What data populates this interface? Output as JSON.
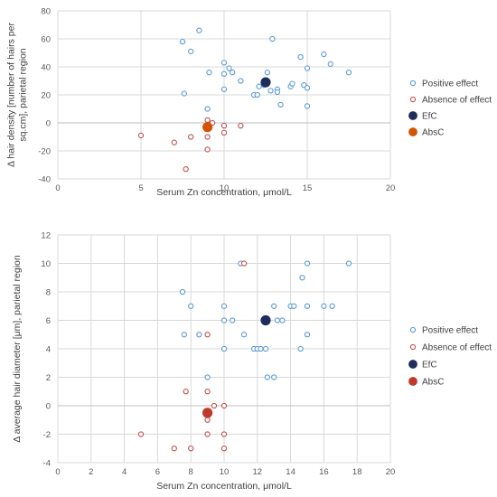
{
  "chart_data": [
    {
      "type": "scatter",
      "xlabel": "Serum Zn concentration, μmol/L",
      "ylabel": "Δ hair density [number of hairs per sq.cm], parietal region",
      "ylabel_lines": [
        "Δ hair density [number of hairs per",
        "sq.cm], parietal region"
      ],
      "xlim": [
        0,
        20
      ],
      "ylim": [
        -40,
        80
      ],
      "xticks": [
        0,
        5,
        10,
        15,
        20
      ],
      "yticks": [
        -40,
        -20,
        0,
        20,
        40,
        60,
        80
      ],
      "grid": true,
      "legend_position": "right",
      "series": [
        {
          "name": "Positive effect",
          "marker": "open-circle",
          "color": "#5B9BD5",
          "points": [
            [
              8.5,
              66
            ],
            [
              7.5,
              58
            ],
            [
              8,
              51
            ],
            [
              12.9,
              60
            ],
            [
              7.6,
              21
            ],
            [
              9.1,
              36
            ],
            [
              10,
              43
            ],
            [
              10.3,
              39
            ],
            [
              10.5,
              36
            ],
            [
              10,
              35
            ],
            [
              11,
              30
            ],
            [
              12.6,
              36
            ],
            [
              12.4,
              27
            ],
            [
              12.8,
              23
            ],
            [
              12.1,
              26
            ],
            [
              13.2,
              24
            ],
            [
              14,
              26
            ],
            [
              14.1,
              28
            ],
            [
              14.6,
              47
            ],
            [
              14.8,
              27
            ],
            [
              15,
              39
            ],
            [
              15,
              25
            ],
            [
              16,
              49
            ],
            [
              16.4,
              42
            ],
            [
              17.5,
              36
            ],
            [
              11.8,
              20
            ],
            [
              12,
              20
            ],
            [
              13.4,
              13
            ],
            [
              15,
              12
            ],
            [
              10,
              24
            ],
            [
              9,
              10
            ],
            [
              12.5,
              29
            ],
            [
              13.2,
              22
            ]
          ]
        },
        {
          "name": "Absence of effect",
          "marker": "open-circle",
          "color": "#C0504D",
          "points": [
            [
              5,
              -9
            ],
            [
              7,
              -14
            ],
            [
              7.7,
              -33
            ],
            [
              8,
              -10
            ],
            [
              9,
              -19
            ],
            [
              9,
              -10
            ],
            [
              9,
              2
            ],
            [
              9.3,
              0
            ],
            [
              10,
              -2
            ],
            [
              10,
              -7
            ],
            [
              11,
              -2
            ]
          ]
        },
        {
          "name": "EfC",
          "marker": "filled-circle",
          "color": "#1F2D5C",
          "points": [
            [
              12.5,
              29
            ]
          ]
        },
        {
          "name": "AbsC",
          "marker": "filled-circle",
          "color": "#D35400",
          "points": [
            [
              9,
              -3
            ]
          ]
        }
      ]
    },
    {
      "type": "scatter",
      "xlabel": "Serum Zn concentration, μmol/L",
      "ylabel": "Δ average hair diameter [μm], parietal region",
      "ylabel_lines": [
        "Δ average hair diameter [μm], parietal region"
      ],
      "xlim": [
        0,
        20
      ],
      "ylim": [
        -4,
        12
      ],
      "xticks": [
        0,
        2,
        4,
        6,
        8,
        10,
        12,
        14,
        16,
        18,
        20
      ],
      "yticks": [
        -4,
        -2,
        0,
        2,
        4,
        6,
        8,
        10,
        12
      ],
      "grid": true,
      "legend_position": "right",
      "series": [
        {
          "name": "Positive effect",
          "marker": "open-circle",
          "color": "#5B9BD5",
          "points": [
            [
              11,
              10
            ],
            [
              15,
              10
            ],
            [
              17.5,
              10
            ],
            [
              14.7,
              9
            ],
            [
              7.5,
              8
            ],
            [
              8,
              7
            ],
            [
              10,
              7
            ],
            [
              13,
              7
            ],
            [
              14,
              7
            ],
            [
              14.2,
              7
            ],
            [
              15,
              7
            ],
            [
              16,
              7
            ],
            [
              16.5,
              7
            ],
            [
              10,
              6
            ],
            [
              10.5,
              6
            ],
            [
              13.2,
              6
            ],
            [
              13.5,
              6
            ],
            [
              7.6,
              5
            ],
            [
              8.5,
              5
            ],
            [
              11.2,
              5
            ],
            [
              15,
              5
            ],
            [
              10,
              4
            ],
            [
              11.8,
              4
            ],
            [
              12,
              4
            ],
            [
              12.2,
              4
            ],
            [
              12.5,
              4
            ],
            [
              14.6,
              4
            ],
            [
              9,
              2
            ],
            [
              12.6,
              2
            ],
            [
              13,
              2
            ]
          ]
        },
        {
          "name": "Absence of effect",
          "marker": "open-circle",
          "color": "#C0504D",
          "points": [
            [
              11.2,
              10
            ],
            [
              9,
              5
            ],
            [
              7.7,
              1
            ],
            [
              9,
              1
            ],
            [
              9.4,
              0
            ],
            [
              10,
              0
            ],
            [
              9,
              -1
            ],
            [
              5,
              -2
            ],
            [
              9,
              -2
            ],
            [
              10,
              -2
            ],
            [
              7,
              -3
            ],
            [
              8,
              -3
            ],
            [
              10,
              -3
            ]
          ]
        },
        {
          "name": "EfC",
          "marker": "filled-circle",
          "color": "#1F2D5C",
          "points": [
            [
              12.5,
              6
            ]
          ]
        },
        {
          "name": "AbsC",
          "marker": "filled-circle",
          "color": "#C0392B",
          "points": [
            [
              9,
              -0.5
            ]
          ]
        }
      ]
    }
  ]
}
